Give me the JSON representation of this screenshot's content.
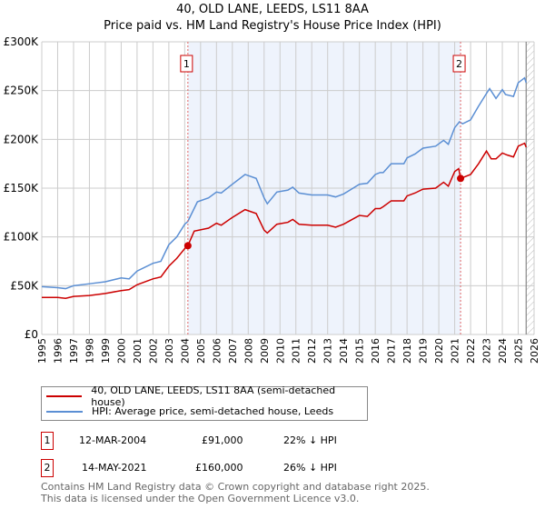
{
  "chart_data": {
    "type": "line",
    "title": "40, OLD LANE, LEEDS, LS11 8AA",
    "subtitle": "Price paid vs. HM Land Registry's House Price Index (HPI)",
    "xlim": [
      1995,
      2026
    ],
    "ylim": [
      0,
      300000
    ],
    "yticks": [
      "£0",
      "£50K",
      "£100K",
      "£150K",
      "£200K",
      "£250K",
      "£300K"
    ],
    "xticks": [
      "1995",
      "1996",
      "1997",
      "1998",
      "1999",
      "2000",
      "2001",
      "2002",
      "2003",
      "2004",
      "2005",
      "2006",
      "2007",
      "2008",
      "2009",
      "2010",
      "2011",
      "2012",
      "2013",
      "2014",
      "2015",
      "2016",
      "2017",
      "2018",
      "2019",
      "2020",
      "2021",
      "2022",
      "2023",
      "2024",
      "2025",
      "2026"
    ],
    "series": [
      {
        "name": "40, OLD LANE, LEEDS, LS11 8AA (semi-detached house)",
        "color": "#cc0000",
        "points": [
          [
            1995,
            38
          ],
          [
            1996,
            38
          ],
          [
            1996.5,
            37
          ],
          [
            1997,
            39
          ],
          [
            1998,
            40
          ],
          [
            1999,
            42
          ],
          [
            2000,
            45
          ],
          [
            2000.5,
            46
          ],
          [
            2001,
            51
          ],
          [
            2002,
            57
          ],
          [
            2002.5,
            59
          ],
          [
            2003,
            70
          ],
          [
            2003.5,
            78
          ],
          [
            2004,
            88
          ],
          [
            2004.2,
            91
          ],
          [
            2004.6,
            106
          ],
          [
            2005.5,
            109
          ],
          [
            2006,
            114
          ],
          [
            2006.3,
            112
          ],
          [
            2007,
            120
          ],
          [
            2007.8,
            128
          ],
          [
            2008.5,
            124
          ],
          [
            2009,
            107
          ],
          [
            2009.2,
            104
          ],
          [
            2009.8,
            113
          ],
          [
            2010.5,
            115
          ],
          [
            2010.8,
            118
          ],
          [
            2011.2,
            113
          ],
          [
            2012,
            112
          ],
          [
            2013,
            112
          ],
          [
            2013.5,
            110
          ],
          [
            2014,
            113
          ],
          [
            2015,
            122
          ],
          [
            2015.5,
            121
          ],
          [
            2016,
            129
          ],
          [
            2016.3,
            129
          ],
          [
            2016.5,
            131
          ],
          [
            2017,
            137
          ],
          [
            2017.8,
            137
          ],
          [
            2018,
            142
          ],
          [
            2018.5,
            145
          ],
          [
            2019,
            149
          ],
          [
            2019.8,
            150
          ],
          [
            2020.3,
            156
          ],
          [
            2020.6,
            152
          ],
          [
            2021,
            167
          ],
          [
            2021.25,
            170
          ],
          [
            2021.37,
            160
          ],
          [
            2022,
            164
          ],
          [
            2022.5,
            175
          ],
          [
            2023,
            188
          ],
          [
            2023.3,
            180
          ],
          [
            2023.6,
            180
          ],
          [
            2024,
            186
          ],
          [
            2024.3,
            184
          ],
          [
            2024.7,
            182
          ],
          [
            2025,
            193
          ],
          [
            2025.4,
            196
          ],
          [
            2025.5,
            192
          ]
        ]
      },
      {
        "name": "HPI: Average price, semi-detached house, Leeds",
        "color": "#5b8fd4",
        "points": [
          [
            1995,
            49
          ],
          [
            1996,
            48
          ],
          [
            1996.5,
            47
          ],
          [
            1997,
            50
          ],
          [
            1998,
            52
          ],
          [
            1999,
            54
          ],
          [
            2000,
            58
          ],
          [
            2000.5,
            57
          ],
          [
            2001,
            65
          ],
          [
            2002,
            73
          ],
          [
            2002.5,
            75
          ],
          [
            2003,
            92
          ],
          [
            2003.5,
            100
          ],
          [
            2004,
            113
          ],
          [
            2004.2,
            116
          ],
          [
            2004.8,
            136
          ],
          [
            2005.5,
            140
          ],
          [
            2006,
            146
          ],
          [
            2006.3,
            145
          ],
          [
            2007,
            154
          ],
          [
            2007.8,
            164
          ],
          [
            2008.5,
            160
          ],
          [
            2009,
            140
          ],
          [
            2009.2,
            134
          ],
          [
            2009.8,
            146
          ],
          [
            2010.5,
            148
          ],
          [
            2010.8,
            151
          ],
          [
            2011.2,
            145
          ],
          [
            2012,
            143
          ],
          [
            2013,
            143
          ],
          [
            2013.5,
            141
          ],
          [
            2014,
            144
          ],
          [
            2015,
            154
          ],
          [
            2015.5,
            155
          ],
          [
            2016,
            164
          ],
          [
            2016.3,
            166
          ],
          [
            2016.5,
            166
          ],
          [
            2017,
            175
          ],
          [
            2017.8,
            175
          ],
          [
            2018,
            181
          ],
          [
            2018.5,
            185
          ],
          [
            2019,
            191
          ],
          [
            2019.8,
            193
          ],
          [
            2020.3,
            199
          ],
          [
            2020.6,
            195
          ],
          [
            2021,
            212
          ],
          [
            2021.3,
            218
          ],
          [
            2021.5,
            216
          ],
          [
            2022,
            220
          ],
          [
            2022.5,
            234
          ],
          [
            2023,
            247
          ],
          [
            2023.2,
            252
          ],
          [
            2023.6,
            242
          ],
          [
            2024,
            251
          ],
          [
            2024.2,
            246
          ],
          [
            2024.7,
            244
          ],
          [
            2025,
            258
          ],
          [
            2025.4,
            263
          ],
          [
            2025.5,
            258
          ]
        ]
      }
    ],
    "sales": [
      {
        "label": "1",
        "x": 2004.2,
        "value": 91
      },
      {
        "label": "2",
        "x": 2021.37,
        "value": 160
      }
    ],
    "shaded_range": [
      2004.2,
      2021.37
    ],
    "forecast_from": 2025.5
  },
  "legend": {
    "property": "40, OLD LANE, LEEDS, LS11 8AA (semi-detached house)",
    "hpi": "HPI: Average price, semi-detached house, Leeds"
  },
  "transactions": [
    {
      "num": "1",
      "date": "12-MAR-2004",
      "price": "£91,000",
      "diff": "22% ↓ HPI"
    },
    {
      "num": "2",
      "date": "14-MAY-2021",
      "price": "£160,000",
      "diff": "26% ↓ HPI"
    }
  ],
  "footer": {
    "line1": "Contains HM Land Registry data © Crown copyright and database right 2025.",
    "line2": "This data is licensed under the Open Government Licence v3.0."
  }
}
